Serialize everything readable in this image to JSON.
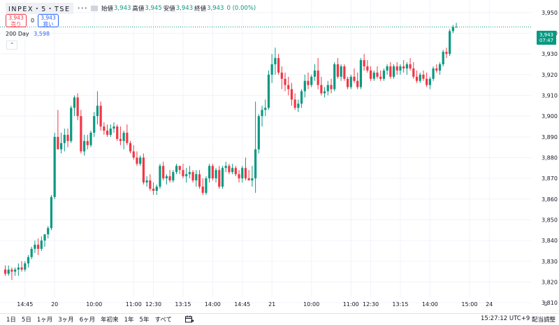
{
  "header": {
    "symbol": "INPEX・5・TSE",
    "dots": "•••",
    "open_label": "始値",
    "open": "3,943",
    "high_label": "高値",
    "high": "3,945",
    "low_label": "安値",
    "low": "3,943",
    "close_label": "終値",
    "close": "3,943",
    "change": "0 (0.00%)"
  },
  "trade": {
    "sell_price": "3,943",
    "sell_label": "売り",
    "spread": "0",
    "buy_price": "3,943",
    "buy_label": "買い"
  },
  "indicator": {
    "name": "200 Day",
    "value": "3,598"
  },
  "collapse_glyph": "⌃",
  "price_badge": {
    "price": "3,943",
    "countdown": "07:47"
  },
  "bottom_bar": {
    "ranges": [
      "1日",
      "5日",
      "1ヶ月",
      "3ヶ月",
      "6ヶ月",
      "年初来",
      "1年",
      "5年",
      "すべて"
    ],
    "clock": "15:27:12 UTC+9",
    "adjust": "配当調整"
  },
  "colors": {
    "up": "#089981",
    "down": "#f23645",
    "grid": "#f0f3fa",
    "text": "#131722",
    "sma": "#2962ff"
  },
  "chart_data": {
    "type": "candlestick",
    "interval": "5 minutes",
    "y_ticks": [
      3810,
      3820,
      3830,
      3840,
      3850,
      3860,
      3870,
      3880,
      3890,
      3900,
      3910,
      3920,
      3930,
      3940,
      3950
    ],
    "y_tick_labels": [
      "3,810",
      "3,820",
      "3,830",
      "3,840",
      "3,850",
      "3,860",
      "3,870",
      "3,880",
      "3,890",
      "3,900",
      "3,910",
      "3,920",
      "3,930",
      "3,940",
      "3,950"
    ],
    "ylim": [
      3805,
      3956
    ],
    "x_ticks": [
      {
        "i": 6,
        "label": "14:45"
      },
      {
        "i": 15,
        "label": "20"
      },
      {
        "i": 27,
        "label": "10:00"
      },
      {
        "i": 39,
        "label": "11:00"
      },
      {
        "i": 45,
        "label": "12:30"
      },
      {
        "i": 54,
        "label": "13:15"
      },
      {
        "i": 63,
        "label": "14:00"
      },
      {
        "i": 72,
        "label": "14:45"
      },
      {
        "i": 81,
        "label": "21"
      },
      {
        "i": 93,
        "label": "10:00"
      },
      {
        "i": 105,
        "label": "11:00"
      },
      {
        "i": 111,
        "label": "12:30"
      },
      {
        "i": 120,
        "label": "13:15"
      },
      {
        "i": 129,
        "label": "14:00"
      },
      {
        "i": 141,
        "label": "15:00"
      },
      {
        "i": 147,
        "label": "24"
      }
    ],
    "current_price": 3943,
    "candles": [
      [
        3826,
        3828,
        3823,
        3824
      ],
      [
        3824,
        3828,
        3823,
        3826
      ],
      [
        3826,
        3827,
        3821,
        3825
      ],
      [
        3825,
        3827,
        3823,
        3826
      ],
      [
        3826,
        3829,
        3823,
        3827
      ],
      [
        3827,
        3830,
        3825,
        3826
      ],
      [
        3826,
        3830,
        3825,
        3829
      ],
      [
        3829,
        3833,
        3827,
        3832
      ],
      [
        3832,
        3837,
        3831,
        3836
      ],
      [
        3836,
        3840,
        3834,
        3838
      ],
      [
        3838,
        3841,
        3833,
        3836
      ],
      [
        3836,
        3842,
        3835,
        3840
      ],
      [
        3840,
        3843,
        3837,
        3843
      ],
      [
        3843,
        3847,
        3841,
        3846
      ],
      [
        3846,
        3862,
        3845,
        3861
      ],
      [
        3861,
        3892,
        3860,
        3890
      ],
      [
        3890,
        3903,
        3884,
        3884
      ],
      [
        3884,
        3892,
        3882,
        3887
      ],
      [
        3887,
        3894,
        3883,
        3891
      ],
      [
        3891,
        3894,
        3885,
        3888
      ],
      [
        3888,
        3905,
        3887,
        3904
      ],
      [
        3904,
        3910,
        3900,
        3909
      ],
      [
        3909,
        3911,
        3898,
        3900
      ],
      [
        3900,
        3903,
        3882,
        3883
      ],
      [
        3883,
        3891,
        3881,
        3888
      ],
      [
        3888,
        3891,
        3884,
        3886
      ],
      [
        3886,
        3893,
        3885,
        3892
      ],
      [
        3892,
        3902,
        3890,
        3900
      ],
      [
        3900,
        3912,
        3896,
        3905
      ],
      [
        3905,
        3907,
        3893,
        3895
      ],
      [
        3895,
        3897,
        3891,
        3893
      ],
      [
        3893,
        3896,
        3890,
        3891
      ],
      [
        3891,
        3896,
        3890,
        3894
      ],
      [
        3894,
        3897,
        3892,
        3895
      ],
      [
        3895,
        3896,
        3888,
        3889
      ],
      [
        3889,
        3895,
        3886,
        3888
      ],
      [
        3888,
        3893,
        3884,
        3892
      ],
      [
        3892,
        3896,
        3886,
        3887
      ],
      [
        3887,
        3888,
        3882,
        3883
      ],
      [
        3883,
        3886,
        3879,
        3880
      ],
      [
        3880,
        3883,
        3876,
        3877
      ],
      [
        3877,
        3881,
        3876,
        3880
      ],
      [
        3880,
        3882,
        3867,
        3868
      ],
      [
        3868,
        3871,
        3866,
        3869
      ],
      [
        3869,
        3872,
        3864,
        3865
      ],
      [
        3865,
        3868,
        3862,
        3864
      ],
      [
        3864,
        3867,
        3862,
        3866
      ],
      [
        3866,
        3877,
        3865,
        3876
      ],
      [
        3876,
        3878,
        3869,
        3870
      ],
      [
        3870,
        3872,
        3867,
        3871
      ],
      [
        3871,
        3874,
        3868,
        3869
      ],
      [
        3869,
        3874,
        3868,
        3873
      ],
      [
        3873,
        3877,
        3872,
        3876
      ],
      [
        3876,
        3876,
        3872,
        3874
      ],
      [
        3874,
        3877,
        3870,
        3871
      ],
      [
        3871,
        3875,
        3868,
        3872
      ],
      [
        3872,
        3876,
        3870,
        3873
      ],
      [
        3873,
        3874,
        3868,
        3869
      ],
      [
        3869,
        3874,
        3866,
        3872
      ],
      [
        3872,
        3874,
        3865,
        3866
      ],
      [
        3866,
        3870,
        3862,
        3863
      ],
      [
        3863,
        3871,
        3862,
        3870
      ],
      [
        3870,
        3877,
        3868,
        3876
      ],
      [
        3876,
        3877,
        3869,
        3870
      ],
      [
        3870,
        3875,
        3868,
        3874
      ],
      [
        3874,
        3876,
        3865,
        3866
      ],
      [
        3866,
        3876,
        3865,
        3875
      ],
      [
        3875,
        3878,
        3873,
        3876
      ],
      [
        3876,
        3877,
        3872,
        3873
      ],
      [
        3873,
        3877,
        3872,
        3875
      ],
      [
        3875,
        3876,
        3871,
        3872
      ],
      [
        3872,
        3874,
        3868,
        3870
      ],
      [
        3870,
        3876,
        3868,
        3875
      ],
      [
        3875,
        3880,
        3869,
        3870
      ],
      [
        3870,
        3874,
        3869,
        3869
      ],
      [
        3869,
        3876,
        3866,
        3870
      ],
      [
        3870,
        3907,
        3863,
        3884
      ],
      [
        3884,
        3901,
        3882,
        3900
      ],
      [
        3900,
        3905,
        3895,
        3903
      ],
      [
        3903,
        3908,
        3900,
        3904
      ],
      [
        3904,
        3922,
        3903,
        3920
      ],
      [
        3920,
        3930,
        3916,
        3925
      ],
      [
        3925,
        3933,
        3920,
        3928
      ],
      [
        3928,
        3930,
        3920,
        3921
      ],
      [
        3921,
        3924,
        3913,
        3918
      ],
      [
        3918,
        3921,
        3912,
        3915
      ],
      [
        3915,
        3919,
        3910,
        3913
      ],
      [
        3913,
        3916,
        3905,
        3908
      ],
      [
        3908,
        3911,
        3903,
        3904
      ],
      [
        3904,
        3908,
        3902,
        3906
      ],
      [
        3906,
        3913,
        3904,
        3912
      ],
      [
        3912,
        3920,
        3909,
        3917
      ],
      [
        3917,
        3921,
        3913,
        3915
      ],
      [
        3915,
        3920,
        3914,
        3919
      ],
      [
        3919,
        3925,
        3917,
        3922
      ],
      [
        3922,
        3928,
        3913,
        3915
      ],
      [
        3915,
        3919,
        3910,
        3911
      ],
      [
        3911,
        3914,
        3909,
        3912
      ],
      [
        3912,
        3917,
        3910,
        3915
      ],
      [
        3915,
        3918,
        3911,
        3913
      ],
      [
        3913,
        3926,
        3912,
        3925
      ],
      [
        3925,
        3928,
        3918,
        3919
      ],
      [
        3919,
        3925,
        3917,
        3924
      ],
      [
        3924,
        3925,
        3917,
        3918
      ],
      [
        3918,
        3919,
        3913,
        3914
      ],
      [
        3914,
        3920,
        3913,
        3919
      ],
      [
        3919,
        3923,
        3916,
        3917
      ],
      [
        3917,
        3921,
        3913,
        3914
      ],
      [
        3914,
        3928,
        3913,
        3927
      ],
      [
        3927,
        3930,
        3922,
        3924
      ],
      [
        3924,
        3927,
        3921,
        3922
      ],
      [
        3922,
        3924,
        3917,
        3918
      ],
      [
        3918,
        3922,
        3917,
        3921
      ],
      [
        3921,
        3924,
        3918,
        3919
      ],
      [
        3919,
        3922,
        3917,
        3918
      ],
      [
        3918,
        3923,
        3917,
        3922
      ],
      [
        3922,
        3925,
        3920,
        3924
      ],
      [
        3924,
        3926,
        3918,
        3919
      ],
      [
        3919,
        3925,
        3918,
        3924
      ],
      [
        3924,
        3926,
        3920,
        3922
      ],
      [
        3922,
        3925,
        3920,
        3924
      ],
      [
        3924,
        3927,
        3921,
        3923
      ],
      [
        3923,
        3926,
        3920,
        3925
      ],
      [
        3925,
        3928,
        3922,
        3923
      ],
      [
        3923,
        3926,
        3918,
        3919
      ],
      [
        3919,
        3922,
        3916,
        3917
      ],
      [
        3917,
        3921,
        3916,
        3920
      ],
      [
        3920,
        3922,
        3917,
        3918
      ],
      [
        3918,
        3921,
        3914,
        3915
      ],
      [
        3915,
        3919,
        3913,
        3918
      ],
      [
        3918,
        3924,
        3917,
        3923
      ],
      [
        3923,
        3925,
        3921,
        3922
      ],
      [
        3922,
        3926,
        3920,
        3925
      ],
      [
        3925,
        3932,
        3924,
        3931
      ],
      [
        3931,
        3933,
        3928,
        3930
      ],
      [
        3930,
        3942,
        3929,
        3941
      ],
      [
        3941,
        3944,
        3940,
        3943
      ],
      [
        3943,
        3945,
        3943,
        3943
      ]
    ]
  }
}
